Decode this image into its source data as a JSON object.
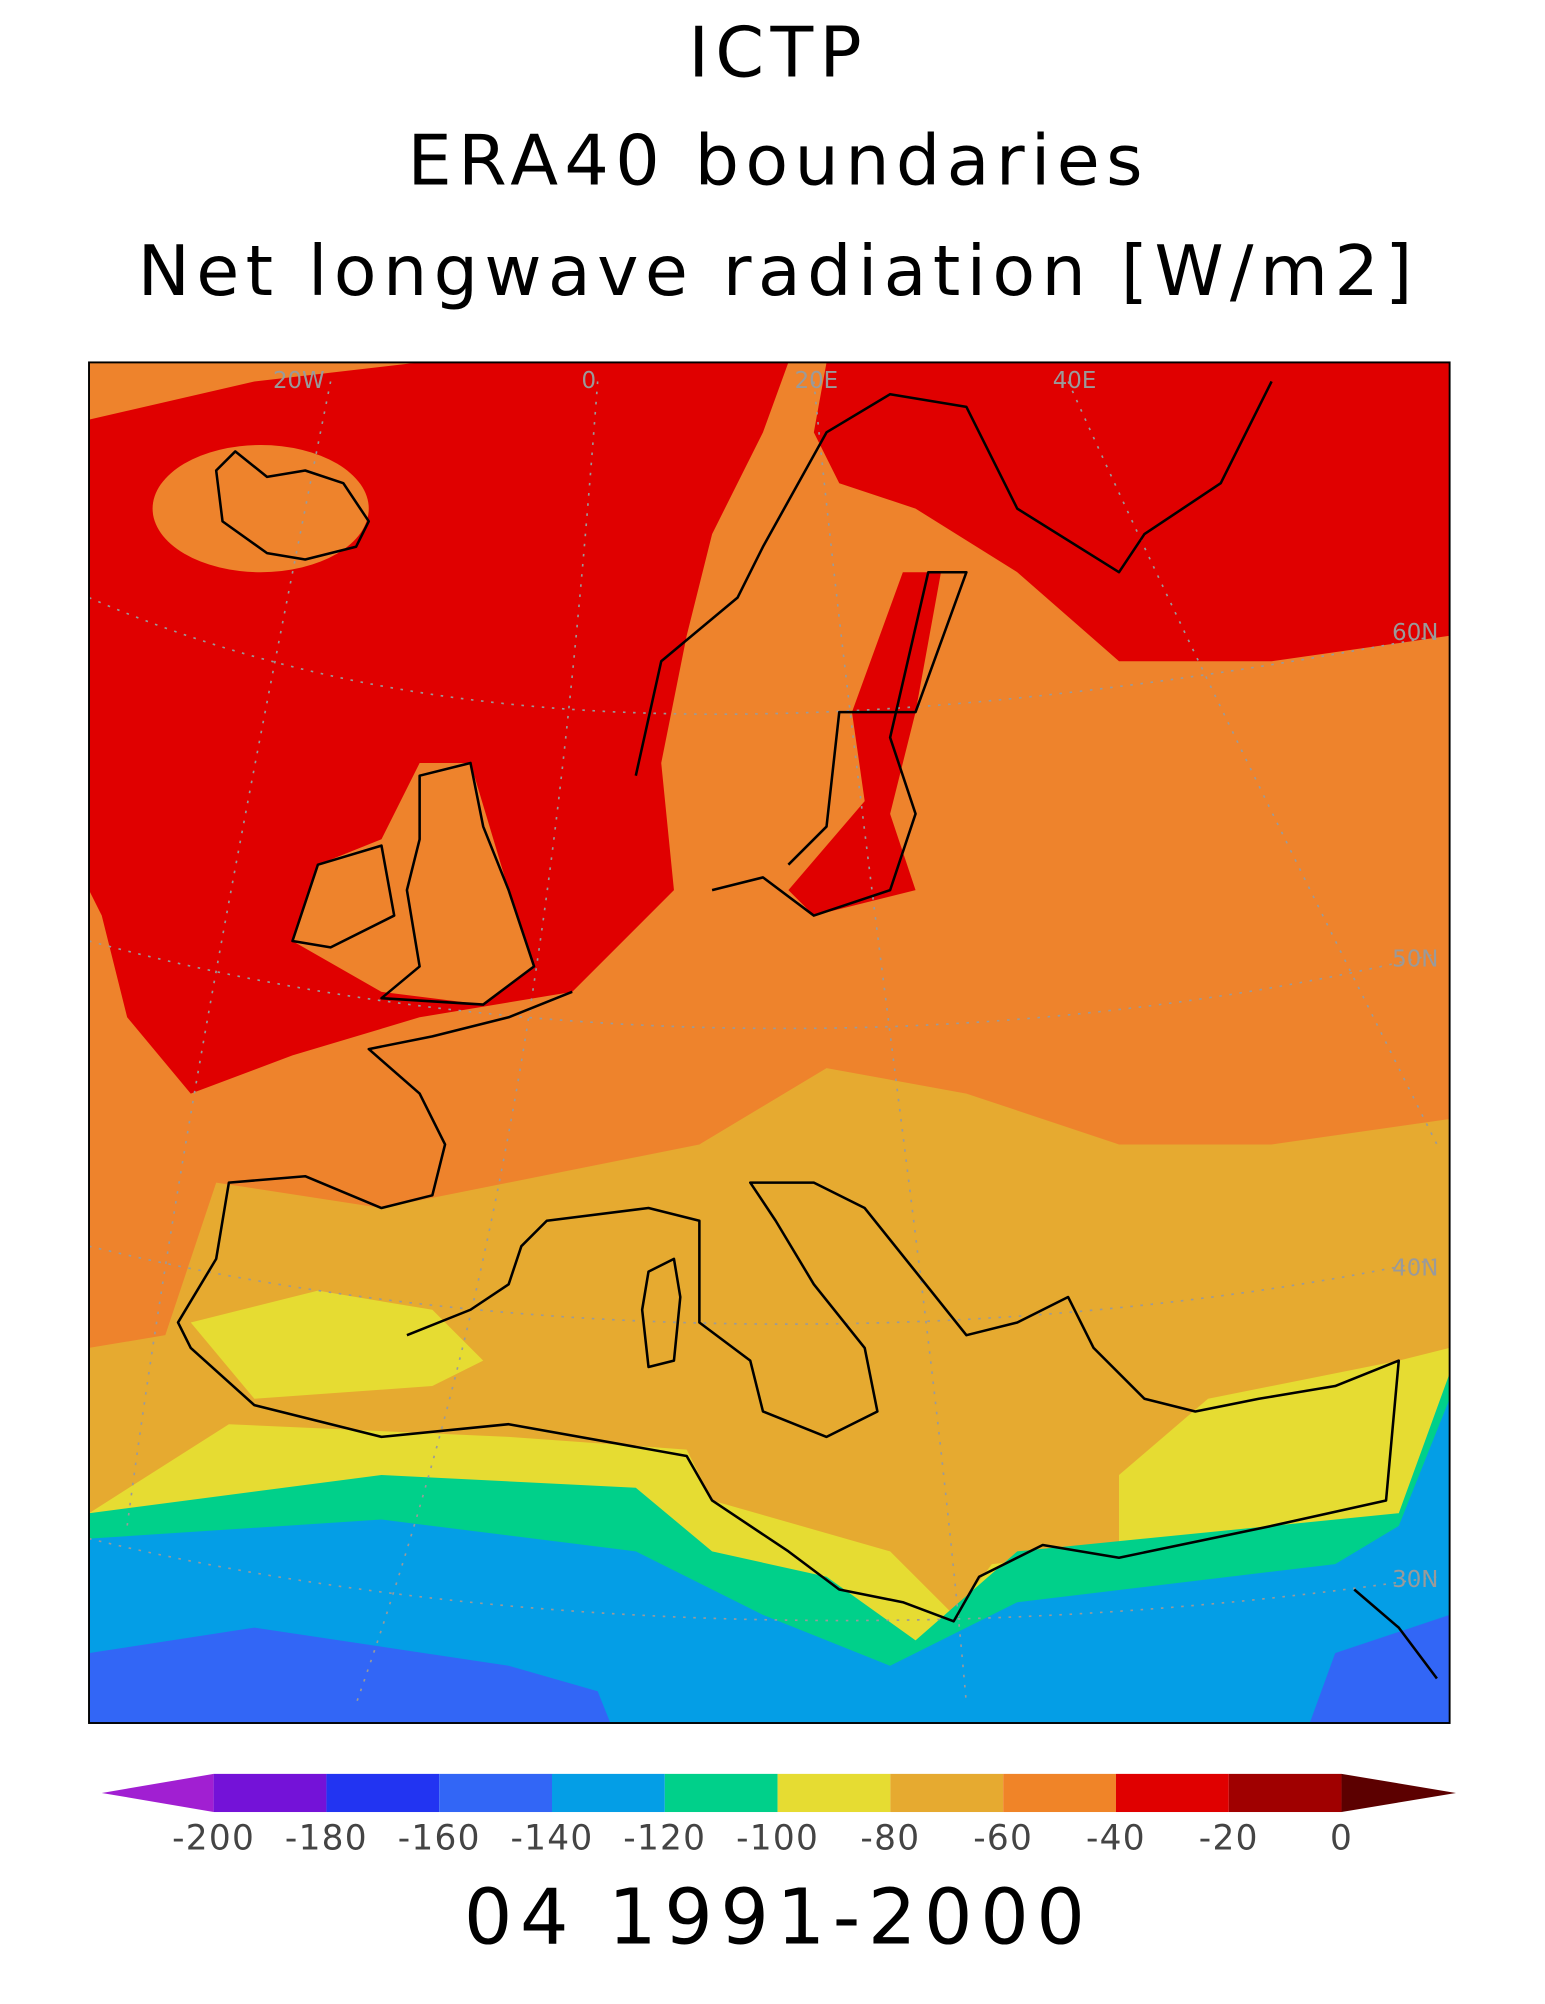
{
  "title": [
    "ICTP",
    "ERA40 boundaries",
    "Net longwave radiation [W/m2]"
  ],
  "map": {
    "lon_labels": [
      "20W",
      "0",
      "20E",
      "40E"
    ],
    "lat_labels": [
      "60N",
      "50N",
      "40N",
      "30N"
    ]
  },
  "colorbar": {
    "colors": [
      "#a11fd2",
      "#7412d8",
      "#2234f2",
      "#3266f6",
      "#049ee6",
      "#00d08a",
      "#e6dc32",
      "#e6aa30",
      "#f08428",
      "#e00000",
      "#a00000",
      "#5c0000"
    ],
    "ticks": [
      -200,
      -180,
      -160,
      -140,
      -120,
      -100,
      -80,
      -60,
      -40,
      -20,
      0
    ]
  },
  "footer": "04 1991-2000"
}
